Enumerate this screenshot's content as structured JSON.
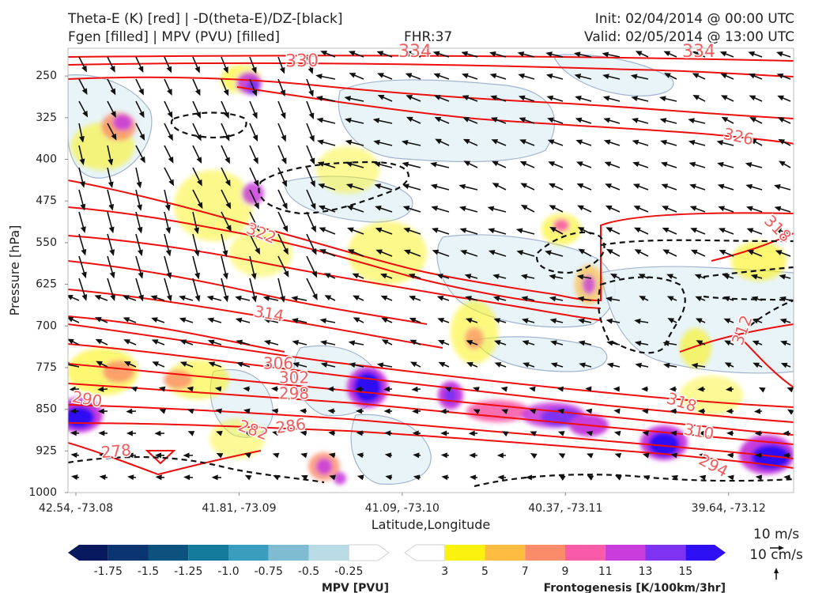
{
  "header": {
    "title_line1": "Theta-E (K) [red] | -D(theta-E)/DZ-[black]",
    "title_line2": "Fgen [filled] | MPV (PVU) [filled]",
    "fhr": "FHR:37",
    "init": "Init: 02/04/2014 @ 00:00 UTC",
    "valid": "Valid: 02/05/2014 @ 13:00 UTC"
  },
  "chart_data": {
    "type": "cross-section",
    "xlabel": "Latitude,Longitude",
    "ylabel": "Pressure [hPa]",
    "x_ticks": [
      "42.54, -73.08",
      "41.81, -73.09",
      "41.09, -73.10",
      "40.37, -73.11",
      "39.64, -73.12"
    ],
    "y_ticks": [
      "250",
      "325",
      "400",
      "475",
      "550",
      "625",
      "700",
      "775",
      "850",
      "925",
      "1000"
    ],
    "ylim": [
      1000,
      200
    ],
    "theta_e_contour_labels": [
      "330",
      "334",
      "334",
      "326",
      "322",
      "318",
      "314",
      "312",
      "306",
      "302",
      "298",
      "290",
      "286",
      "282",
      "278",
      "318",
      "310",
      "294"
    ],
    "mpv_colorbar": {
      "label": "MPV [PVU]",
      "ticks": [
        "-1.75",
        "-1.5",
        "-1.25",
        "-1.0",
        "-0.75",
        "-0.5",
        "-0.25"
      ],
      "colors": [
        "#08195e",
        "#0a3570",
        "#0d517f",
        "#137a9c",
        "#3a9dbd",
        "#7fbcd2",
        "#b9dbe6",
        "#ffffff"
      ]
    },
    "fgen_colorbar": {
      "label": "Frontogenesis [K/100km/3hr]",
      "ticks": [
        "3",
        "5",
        "7",
        "9",
        "11",
        "13",
        "15"
      ],
      "colors": [
        "#ffffff",
        "#fbf20f",
        "#fcbd41",
        "#fb8c69",
        "#f85ca8",
        "#c83ddb",
        "#7e32f2",
        "#2f10f5"
      ]
    },
    "wind_reference": {
      "horizontal": "10 m/s",
      "vertical": "10 cm/s"
    }
  }
}
